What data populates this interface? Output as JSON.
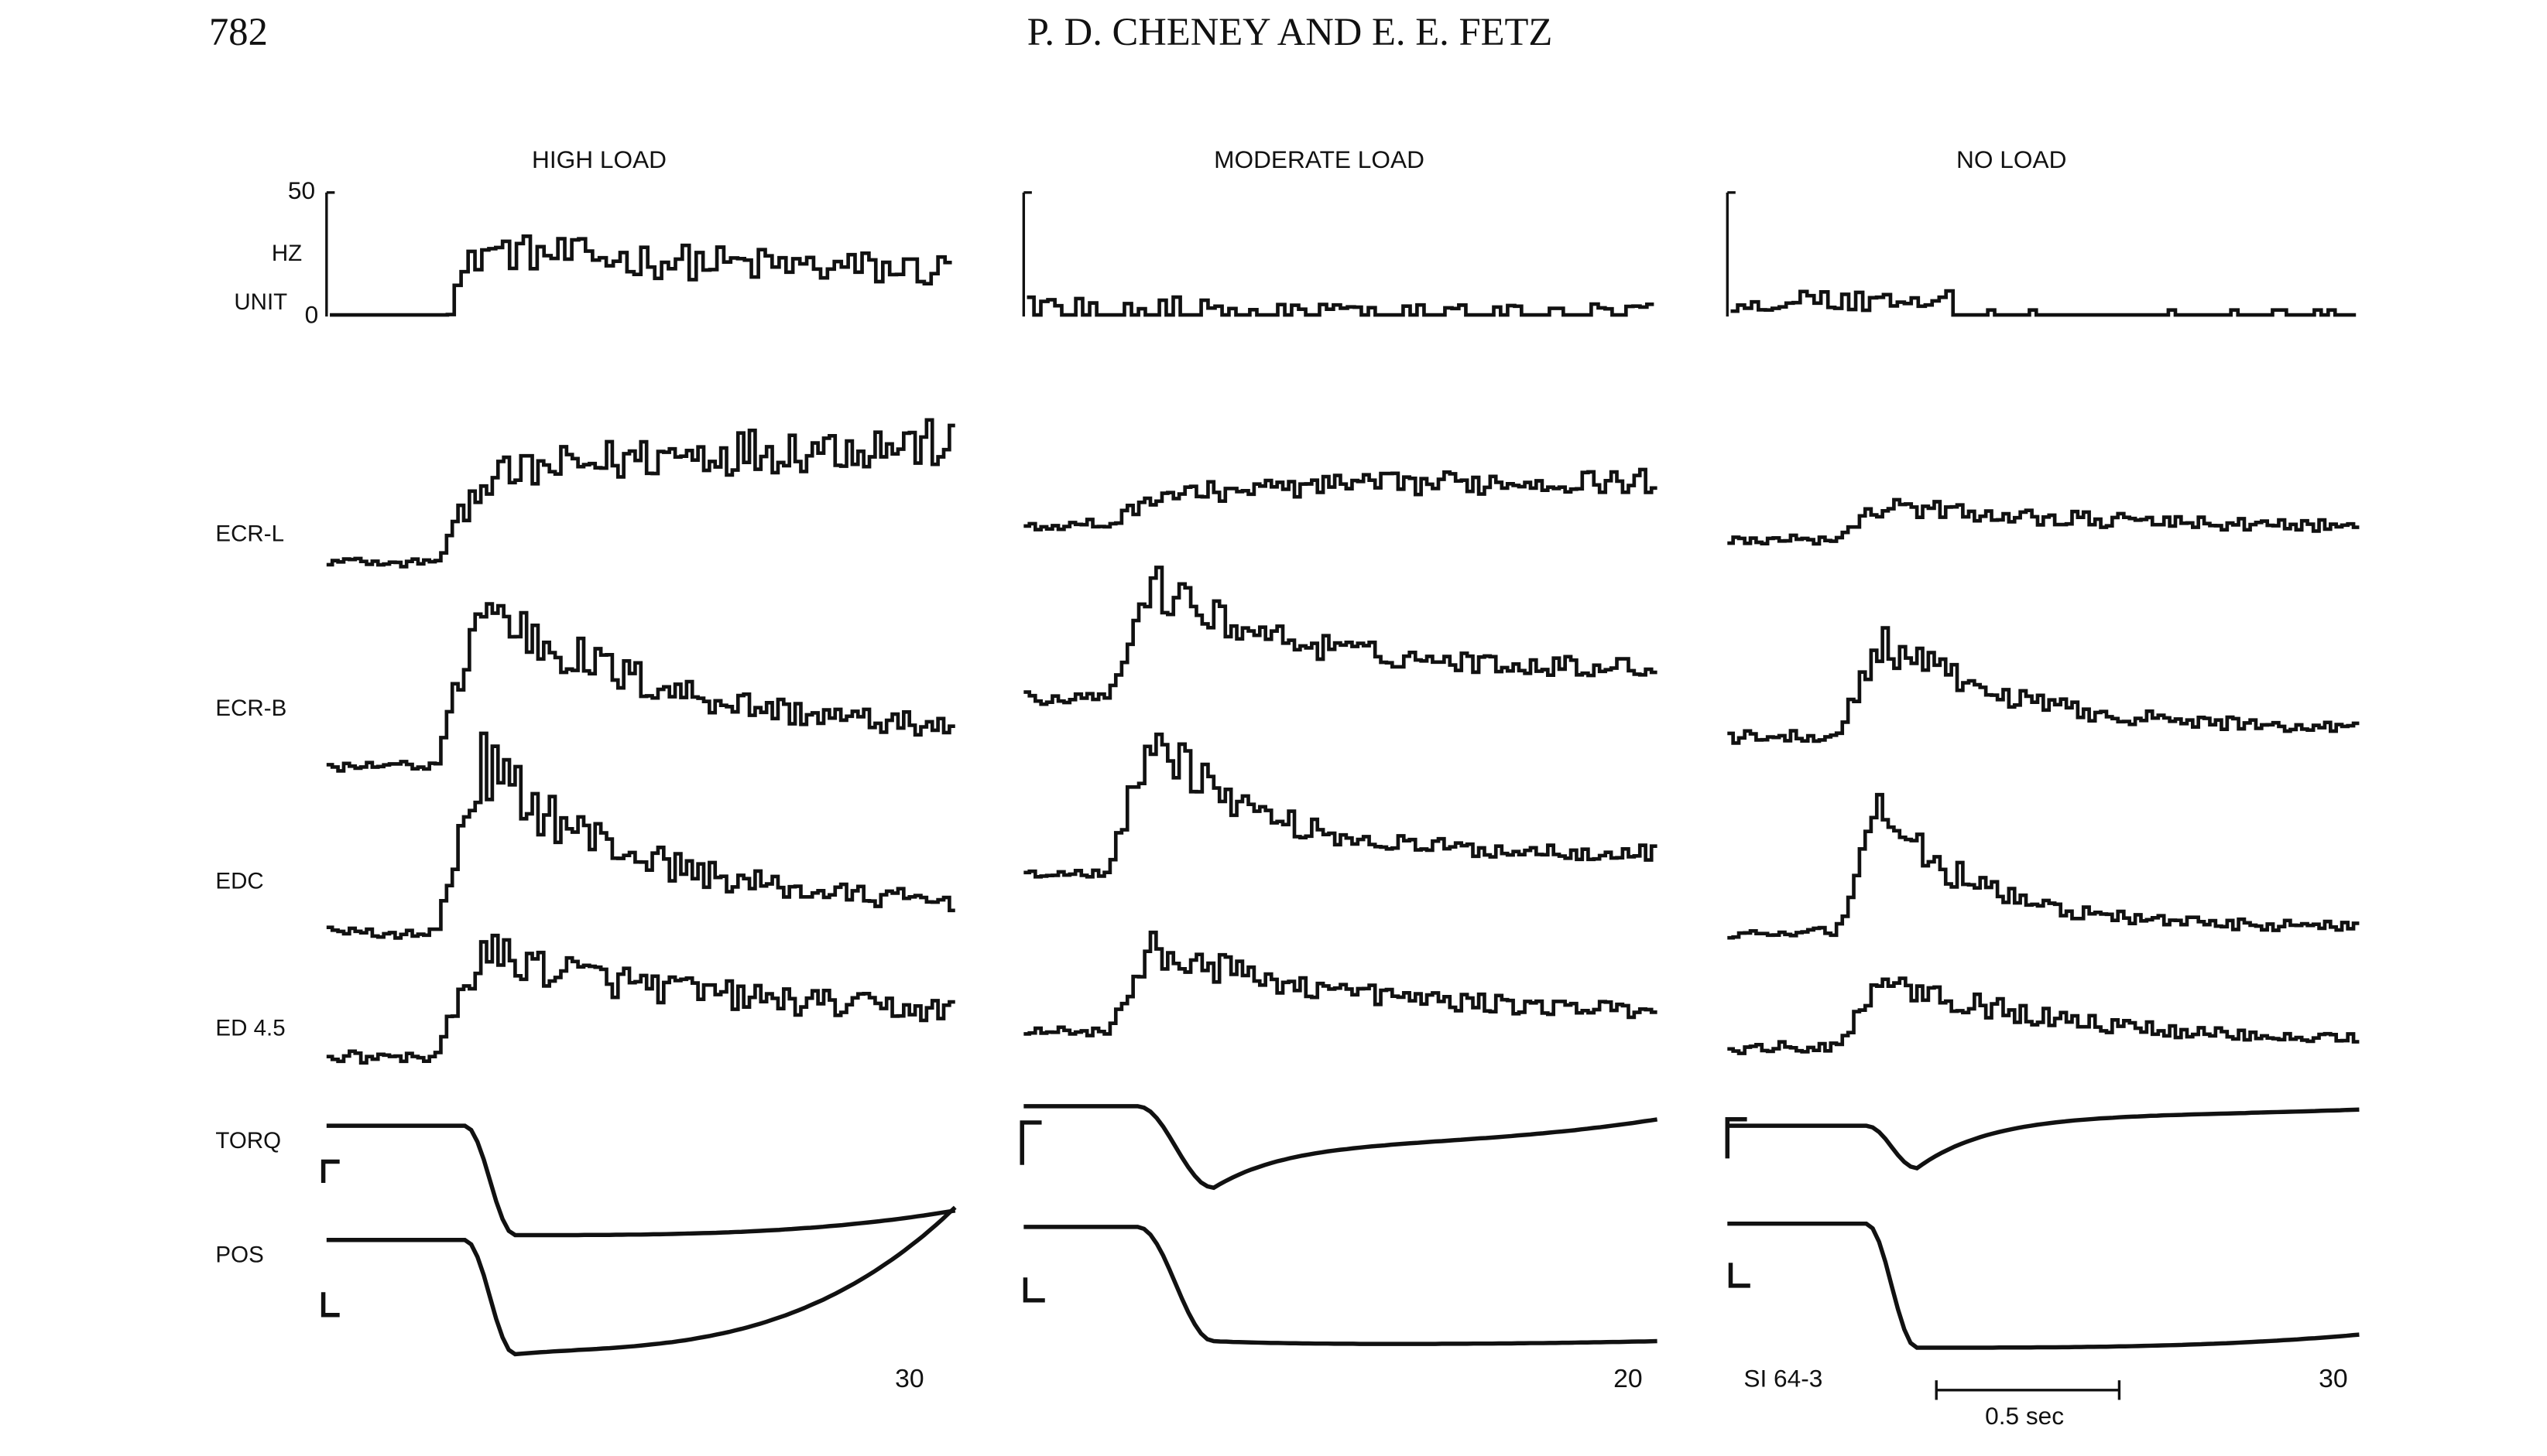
{
  "header": {
    "page_number": "782",
    "authors": "P. D. CHENEY AND E. E. FETZ"
  },
  "figure": {
    "columns": [
      {
        "title": "HIGH LOAD",
        "trials": "30"
      },
      {
        "title": "MODERATE LOAD",
        "trials": "20"
      },
      {
        "title": "NO LOAD",
        "trials": "30"
      }
    ],
    "unit_axis": {
      "max": "50",
      "units": "HZ",
      "label": "UNIT",
      "zero": "0"
    },
    "row_labels": [
      "ECR-L",
      "ECR-B",
      "EDC",
      "ED 4.5",
      "TORQ",
      "POS"
    ],
    "cell_id": "SI 64-3",
    "time_scale": "0.5 sec"
  }
}
